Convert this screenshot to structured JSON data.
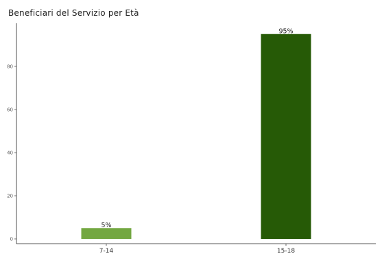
{
  "chart_data": {
    "type": "bar",
    "title": "Beneficiari del Servizio per Età",
    "xlabel": "",
    "ylabel": "",
    "categories": [
      "7-14",
      "15-18"
    ],
    "values": [
      5,
      95
    ],
    "data_labels": [
      "5%",
      "95%"
    ],
    "bar_colors": [
      "#73a741",
      "#265a06"
    ],
    "ylim": [
      0,
      100
    ],
    "yticks": [
      0,
      20,
      40,
      60,
      80
    ],
    "grid": false,
    "legend": "none"
  }
}
